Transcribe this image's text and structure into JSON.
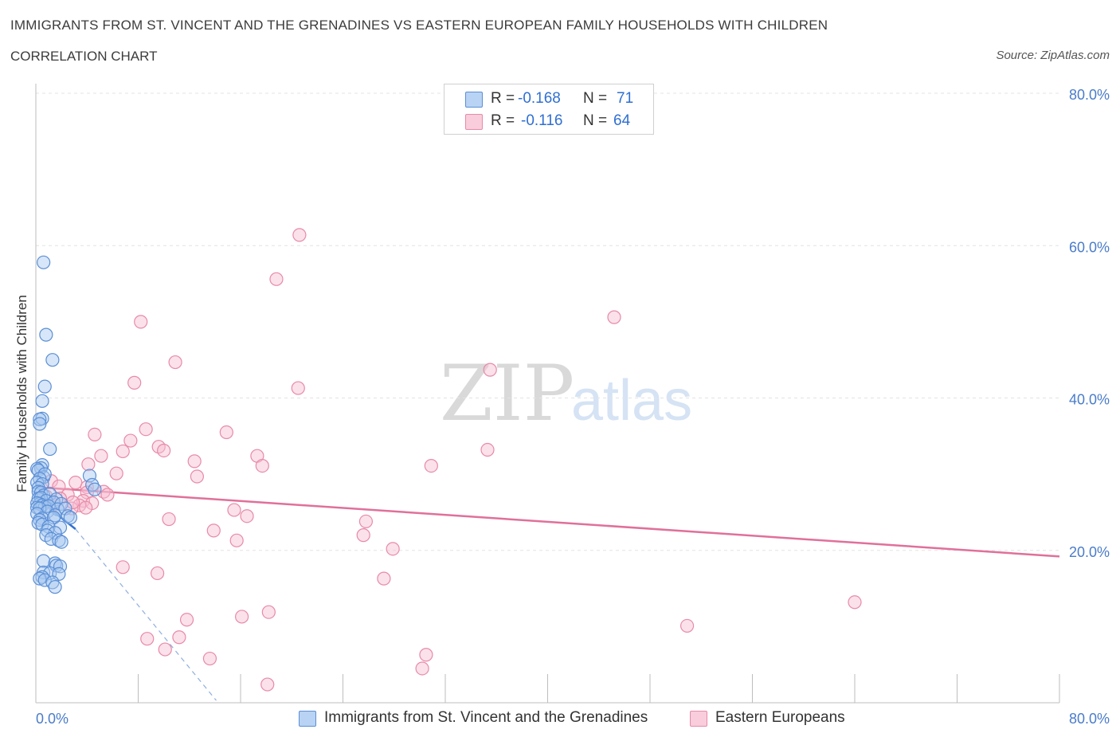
{
  "header": {
    "title": "IMMIGRANTS FROM ST. VINCENT AND THE GRENADINES VS EASTERN EUROPEAN FAMILY HOUSEHOLDS WITH CHILDREN",
    "subtitle": "CORRELATION CHART",
    "source": "Source: ZipAtlas.com"
  },
  "legend": {
    "r_label": "R =",
    "n_label": "N =",
    "series": [
      {
        "r": "-0.168",
        "n": "71"
      },
      {
        "r": "-0.116",
        "n": "64"
      }
    ]
  },
  "watermark": {
    "zip": "ZIP",
    "atlas": "atlas"
  },
  "colors": {
    "blue_fill": "#a7c8f0",
    "blue_stroke": "#5b8fd6",
    "blue_line": "#2f6fd1",
    "pink_fill": "#f6bcd0",
    "pink_stroke": "#e88aa8",
    "pink_line": "#e0709a",
    "axis_text": "#4a7cc9",
    "grid": "#e3e3e3"
  },
  "chart_data": {
    "type": "scatter",
    "title": "IMMIGRANTS FROM ST. VINCENT AND THE GRENADINES VS EASTERN EUROPEAN FAMILY HOUSEHOLDS WITH CHILDREN",
    "xlabel": "",
    "ylabel": "Family Households with Children",
    "xlim": [
      0,
      80
    ],
    "ylim": [
      0,
      80
    ],
    "x_tick_labels": [
      "0.0%",
      "80.0%"
    ],
    "y_ticks": [
      20,
      40,
      60,
      80
    ],
    "y_tick_labels": [
      "20.0%",
      "40.0%",
      "60.0%",
      "80.0%"
    ],
    "grid": true,
    "legend_position": "bottom",
    "series": [
      {
        "name": "Immigrants from St. Vincent and the Grenadines",
        "color": "blue",
        "r": -0.168,
        "n": 71,
        "trend": {
          "x0": 0.1,
          "y0": 26.8,
          "x1": 3.1,
          "y1": 22.8,
          "dashed_to_x": 14.1,
          "dashed_to_y": 0.3
        },
        "points": [
          [
            0.6,
            57.8
          ],
          [
            0.8,
            48.3
          ],
          [
            1.3,
            45.0
          ],
          [
            0.7,
            41.5
          ],
          [
            0.5,
            39.6
          ],
          [
            0.5,
            37.3
          ],
          [
            0.3,
            37.2
          ],
          [
            0.3,
            36.6
          ],
          [
            1.1,
            33.3
          ],
          [
            0.5,
            31.2
          ],
          [
            0.4,
            30.8
          ],
          [
            0.1,
            30.7
          ],
          [
            0.2,
            30.5
          ],
          [
            0.6,
            29.6
          ],
          [
            0.7,
            30.0
          ],
          [
            4.2,
            29.8
          ],
          [
            0.3,
            29.4
          ],
          [
            0.1,
            28.9
          ],
          [
            0.5,
            28.7
          ],
          [
            4.4,
            28.6
          ],
          [
            0.2,
            28.2
          ],
          [
            4.6,
            28.0
          ],
          [
            0.2,
            27.7
          ],
          [
            0.4,
            27.6
          ],
          [
            0.6,
            27.2
          ],
          [
            1.1,
            27.4
          ],
          [
            0.2,
            26.8
          ],
          [
            0.4,
            26.9
          ],
          [
            1.6,
            26.7
          ],
          [
            0.8,
            26.5
          ],
          [
            0.3,
            26.1
          ],
          [
            0.1,
            26.2
          ],
          [
            1.4,
            26.3
          ],
          [
            2.0,
            26.1
          ],
          [
            0.5,
            25.9
          ],
          [
            0.7,
            25.7
          ],
          [
            1.0,
            25.8
          ],
          [
            0.1,
            25.6
          ],
          [
            0.3,
            25.5
          ],
          [
            1.7,
            25.4
          ],
          [
            2.3,
            25.5
          ],
          [
            0.9,
            25.1
          ],
          [
            0.1,
            24.8
          ],
          [
            1.5,
            24.6
          ],
          [
            2.5,
            24.5
          ],
          [
            2.7,
            24.3
          ],
          [
            0.5,
            24.2
          ],
          [
            0.3,
            24.0
          ],
          [
            1.4,
            24.3
          ],
          [
            0.2,
            23.6
          ],
          [
            0.5,
            23.4
          ],
          [
            1.0,
            23.1
          ],
          [
            1.9,
            23.0
          ],
          [
            0.9,
            22.6
          ],
          [
            1.5,
            22.3
          ],
          [
            0.8,
            22.0
          ],
          [
            1.2,
            21.5
          ],
          [
            1.8,
            21.3
          ],
          [
            2.0,
            21.1
          ],
          [
            0.6,
            18.6
          ],
          [
            1.5,
            18.3
          ],
          [
            1.6,
            18.0
          ],
          [
            1.9,
            17.9
          ],
          [
            0.6,
            17.1
          ],
          [
            1.1,
            17.0
          ],
          [
            1.8,
            16.9
          ],
          [
            0.5,
            16.5
          ],
          [
            0.3,
            16.3
          ],
          [
            0.7,
            16.1
          ],
          [
            1.3,
            15.8
          ],
          [
            1.5,
            15.2
          ]
        ]
      },
      {
        "name": "Eastern Europeans",
        "color": "pink",
        "r": -0.116,
        "n": 64,
        "trend": {
          "x0": 0.0,
          "y0": 28.3,
          "x1": 80.0,
          "y1": 19.2
        },
        "points": [
          [
            20.6,
            61.4
          ],
          [
            18.8,
            55.6
          ],
          [
            45.2,
            50.6
          ],
          [
            8.2,
            50.0
          ],
          [
            10.9,
            44.7
          ],
          [
            35.5,
            43.7
          ],
          [
            7.7,
            42.0
          ],
          [
            20.5,
            41.3
          ],
          [
            4.6,
            35.2
          ],
          [
            8.6,
            35.9
          ],
          [
            14.9,
            35.5
          ],
          [
            7.4,
            34.4
          ],
          [
            9.6,
            33.6
          ],
          [
            10.0,
            33.1
          ],
          [
            35.3,
            33.2
          ],
          [
            6.8,
            33.0
          ],
          [
            5.1,
            32.4
          ],
          [
            17.3,
            32.4
          ],
          [
            12.4,
            31.7
          ],
          [
            17.7,
            31.1
          ],
          [
            4.1,
            31.3
          ],
          [
            30.9,
            31.1
          ],
          [
            6.3,
            30.1
          ],
          [
            12.6,
            29.7
          ],
          [
            1.2,
            29.1
          ],
          [
            3.1,
            28.9
          ],
          [
            4.0,
            28.3
          ],
          [
            1.8,
            28.4
          ],
          [
            4.0,
            27.6
          ],
          [
            5.3,
            27.7
          ],
          [
            2.5,
            27.3
          ],
          [
            5.6,
            27.3
          ],
          [
            1.9,
            26.8
          ],
          [
            3.7,
            26.5
          ],
          [
            4.4,
            26.2
          ],
          [
            1.4,
            26.0
          ],
          [
            3.4,
            25.9
          ],
          [
            3.9,
            25.6
          ],
          [
            2.8,
            25.5
          ],
          [
            15.5,
            25.3
          ],
          [
            16.5,
            24.5
          ],
          [
            10.4,
            24.1
          ],
          [
            25.8,
            23.8
          ],
          [
            13.9,
            22.6
          ],
          [
            25.6,
            22.0
          ],
          [
            15.7,
            21.3
          ],
          [
            27.9,
            20.2
          ],
          [
            6.8,
            17.8
          ],
          [
            9.5,
            17.0
          ],
          [
            27.2,
            16.3
          ],
          [
            64.0,
            13.2
          ],
          [
            18.2,
            11.9
          ],
          [
            16.1,
            11.3
          ],
          [
            11.8,
            10.9
          ],
          [
            50.9,
            10.1
          ],
          [
            11.2,
            8.6
          ],
          [
            8.7,
            8.4
          ],
          [
            10.1,
            7.0
          ],
          [
            30.5,
            6.3
          ],
          [
            13.6,
            5.8
          ],
          [
            30.2,
            4.5
          ],
          [
            18.1,
            2.4
          ],
          [
            0.8,
            27.1
          ],
          [
            2.9,
            26.3
          ]
        ]
      }
    ]
  }
}
